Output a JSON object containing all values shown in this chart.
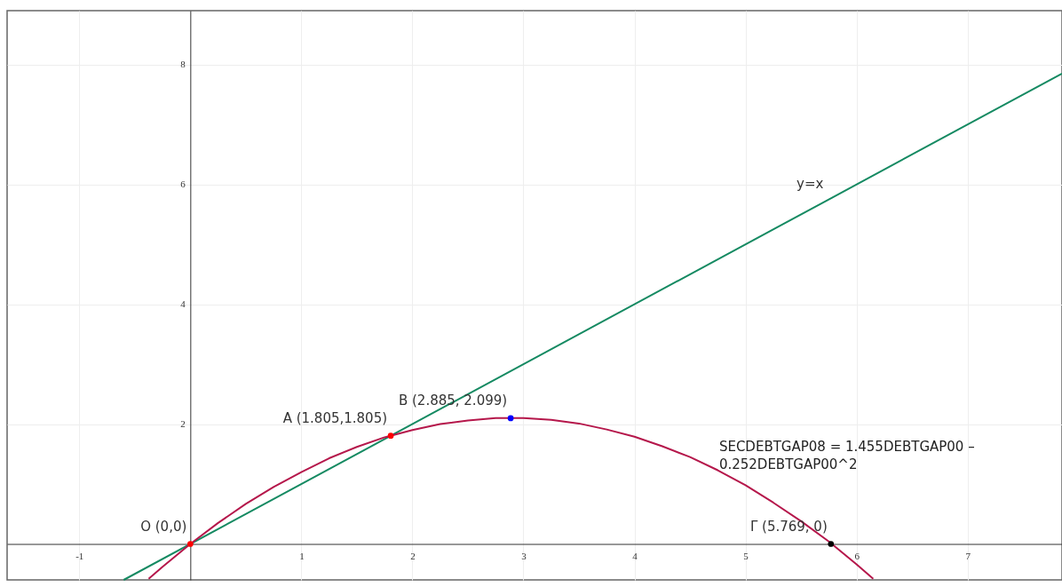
{
  "chart_data": {
    "type": "line",
    "xlim": [
      -1.65,
      7.85
    ],
    "ylim": [
      -0.6,
      8.9
    ],
    "xticks": [
      -1,
      1,
      2,
      3,
      4,
      5,
      6,
      7
    ],
    "yticks": [
      2,
      4,
      6,
      8
    ],
    "grid": true,
    "annotations": [
      "SECDEBTGAP08 = 1.455DEBTGAP00 – 0.252DEBTGAP00^2"
    ],
    "series": [
      {
        "type": "line",
        "name": "y=x",
        "color": "#158a62",
        "x": [
          -0.6,
          5.75,
          7.85
        ],
        "values": [
          -0.6,
          5.75,
          7.85
        ]
      },
      {
        "type": "line",
        "color": "#b5174b",
        "x": [
          -0.375,
          -0.25,
          0,
          0.25,
          0.5,
          0.75,
          1,
          1.25,
          1.5,
          1.75,
          2,
          2.25,
          2.5,
          2.75,
          3,
          3.25,
          3.5,
          3.75,
          4,
          4.25,
          4.5,
          4.75,
          5,
          5.25,
          5.5,
          5.75,
          6,
          6.15
        ],
        "values": [
          -0.58,
          -0.38,
          0,
          0.35,
          0.67,
          0.95,
          1.2,
          1.43,
          1.62,
          1.78,
          1.9,
          2,
          2.06,
          2.1,
          2.1,
          2.07,
          2.01,
          1.91,
          1.79,
          1.63,
          1.45,
          1.23,
          0.98,
          0.69,
          0.38,
          0.04,
          -0.34,
          -0.58
        ]
      },
      {
        "type": "scatter",
        "name": "O (0,0)",
        "color": "#ff0000",
        "marker": "circle",
        "x": [
          0
        ],
        "values": [
          0
        ]
      },
      {
        "type": "scatter",
        "name": "A (1.805,1.805)",
        "color": "#ff0000",
        "marker": "circle",
        "x": [
          1.805
        ],
        "values": [
          1.805
        ]
      },
      {
        "type": "scatter",
        "name": "B (2.885, 2.099)",
        "color": "#0000ff",
        "marker": "circle",
        "x": [
          2.885
        ],
        "values": [
          2.099
        ]
      },
      {
        "type": "scatter",
        "name": "Γ (5.769, 0)",
        "color": "#000000",
        "marker": "circle",
        "x": [
          5.769
        ],
        "values": [
          0
        ]
      }
    ]
  }
}
